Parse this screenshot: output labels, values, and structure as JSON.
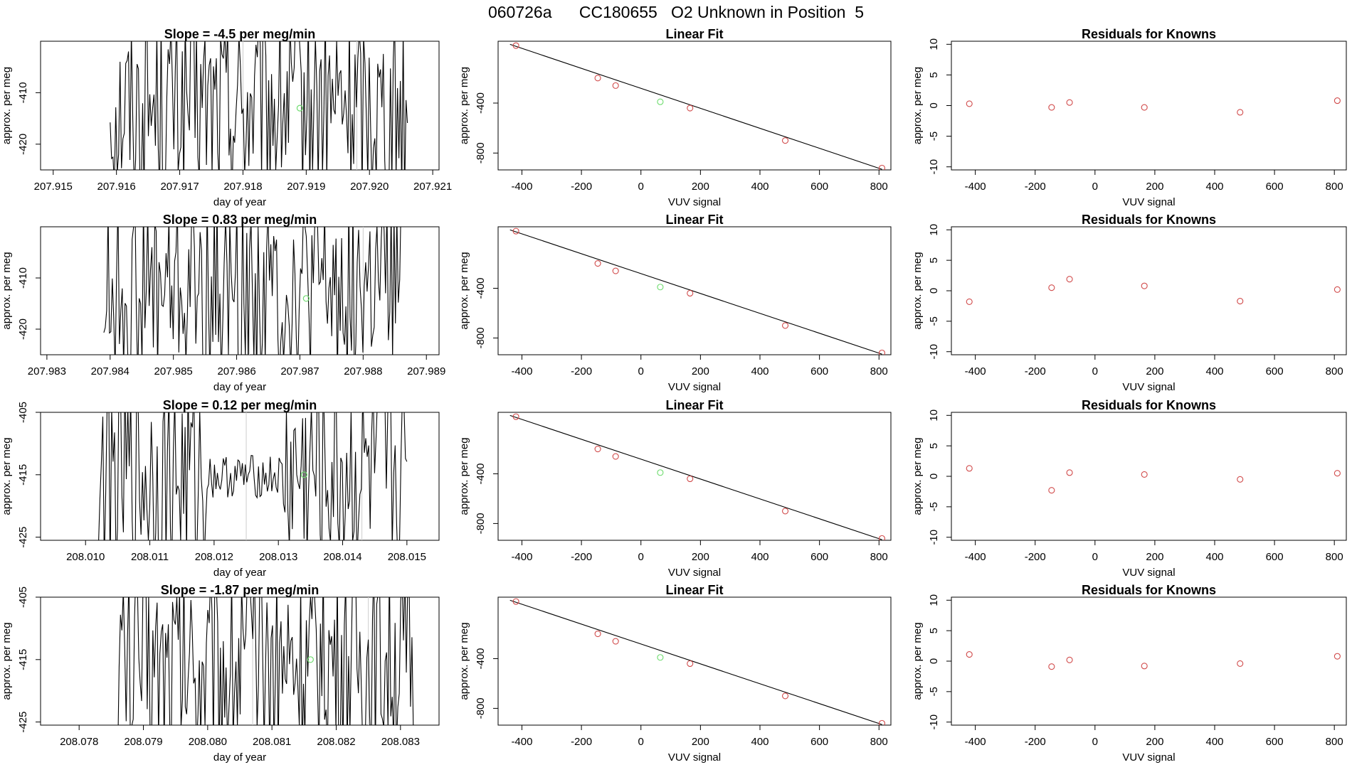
{
  "page": {
    "title": "060726a      CC180655   O2 Unknown in Position  5"
  },
  "colors": {
    "line": "#000000",
    "green": "#6fdc6f",
    "red": "#d14b4b",
    "refline": "#cccccc"
  },
  "chart_data": [
    {
      "type": "line",
      "title": "Slope =  -4.5  per meg/min",
      "xlabel": "day of year",
      "ylabel": "approx. per meg",
      "xlim": [
        207.9148,
        207.9211
      ],
      "ylim": [
        -425,
        -400
      ],
      "xticks": [
        "207.915",
        "207.916",
        "207.917",
        "207.918",
        "207.919",
        "207.920",
        "207.921"
      ],
      "yticks": [
        "-410",
        "-420"
      ],
      "highlight_point": {
        "x": 207.9189,
        "y": -413
      },
      "ref_lines_x": [
        207.918,
        207.9198
      ],
      "trace_span": [
        207.9159,
        207.9206
      ]
    },
    {
      "type": "line",
      "title": "Slope =  0.83  per meg/min",
      "xlabel": "day of year",
      "ylabel": "approx. per meg",
      "xlim": [
        207.9829,
        207.9892
      ],
      "ylim": [
        -425,
        -400
      ],
      "xticks": [
        "207.983",
        "207.984",
        "207.985",
        "207.986",
        "207.987",
        "207.988",
        "207.989"
      ],
      "yticks": [
        "-410",
        "-420"
      ],
      "highlight_point": {
        "x": 207.9871,
        "y": -414
      },
      "ref_lines_x": [
        207.9862,
        207.988
      ],
      "trace_span": [
        207.9839,
        207.9886
      ]
    },
    {
      "type": "line",
      "title": "Slope =  0.12  per meg/min",
      "xlabel": "day of year",
      "ylabel": "approx. per meg",
      "xlim": [
        208.0093,
        208.0155
      ],
      "ylim": [
        -425.5,
        -405
      ],
      "xticks": [
        "208.010",
        "208.011",
        "208.012",
        "208.013",
        "208.014",
        "208.015"
      ],
      "yticks": [
        "-405",
        "-415",
        "-425"
      ],
      "highlight_point": {
        "x": 208.0134,
        "y": -415
      },
      "ref_lines_x": [
        208.0125,
        208.0143
      ],
      "trace_span": [
        208.0102,
        208.015
      ]
    },
    {
      "type": "line",
      "title": "Slope =  -1.87  per meg/min",
      "xlabel": "day of year",
      "ylabel": "approx. per meg",
      "xlim": [
        208.0774,
        208.0836
      ],
      "ylim": [
        -425.5,
        -405
      ],
      "xticks": [
        "208.078",
        "208.079",
        "208.080",
        "208.081",
        "208.082",
        "208.083"
      ],
      "yticks": [
        "-405",
        "-415",
        "-425"
      ],
      "highlight_point": {
        "x": 208.0816,
        "y": -415
      },
      "ref_lines_x": [
        208.0807,
        208.0825
      ],
      "trace_span": [
        208.0786,
        208.0832
      ]
    },
    {
      "type": "scatter",
      "title": "Linear Fit",
      "xlabel": "VUV signal",
      "ylabel": "approx. per meg",
      "xlim": [
        -480,
        840
      ],
      "ylim": [
        -935,
        95
      ],
      "xticks": [
        "-400",
        "-200",
        "0",
        "200",
        "400",
        "600",
        "800"
      ],
      "yticks": [
        "-400",
        "-800"
      ],
      "fit_line": {
        "x": [
          -440,
          810
        ],
        "y": [
          70,
          -930
        ]
      },
      "knowns": [
        {
          "x": -420,
          "y": 60
        },
        {
          "x": -145,
          "y": -200
        },
        {
          "x": -85,
          "y": -260
        },
        {
          "x": 165,
          "y": -440
        },
        {
          "x": 485,
          "y": -700
        },
        {
          "x": 810,
          "y": -920
        }
      ],
      "unknown": {
        "x": 65,
        "y": -390
      }
    },
    {
      "type": "scatter",
      "title": "Linear Fit",
      "xlabel": "VUV signal",
      "ylabel": "approx. per meg",
      "xlim": [
        -480,
        840
      ],
      "ylim": [
        -935,
        95
      ],
      "xticks": [
        "-400",
        "-200",
        "0",
        "200",
        "400",
        "600",
        "800"
      ],
      "yticks": [
        "-400",
        "-800"
      ],
      "fit_line": {
        "x": [
          -440,
          810
        ],
        "y": [
          70,
          -930
        ]
      },
      "knowns": [
        {
          "x": -420,
          "y": 60
        },
        {
          "x": -145,
          "y": -200
        },
        {
          "x": -85,
          "y": -260
        },
        {
          "x": 165,
          "y": -440
        },
        {
          "x": 485,
          "y": -700
        },
        {
          "x": 810,
          "y": -920
        }
      ],
      "unknown": {
        "x": 65,
        "y": -390
      }
    },
    {
      "type": "scatter",
      "title": "Linear Fit",
      "xlabel": "VUV signal",
      "ylabel": "approx. per meg",
      "xlim": [
        -480,
        840
      ],
      "ylim": [
        -935,
        95
      ],
      "xticks": [
        "-400",
        "-200",
        "0",
        "200",
        "400",
        "600",
        "800"
      ],
      "yticks": [
        "-400",
        "-800"
      ],
      "fit_line": {
        "x": [
          -440,
          810
        ],
        "y": [
          70,
          -930
        ]
      },
      "knowns": [
        {
          "x": -420,
          "y": 60
        },
        {
          "x": -145,
          "y": -200
        },
        {
          "x": -85,
          "y": -260
        },
        {
          "x": 165,
          "y": -440
        },
        {
          "x": 485,
          "y": -700
        },
        {
          "x": 810,
          "y": -920
        }
      ],
      "unknown": {
        "x": 65,
        "y": -390
      }
    },
    {
      "type": "scatter",
      "title": "Linear Fit",
      "xlabel": "VUV signal",
      "ylabel": "approx. per meg",
      "xlim": [
        -480,
        840
      ],
      "ylim": [
        -935,
        95
      ],
      "xticks": [
        "-400",
        "-200",
        "0",
        "200",
        "400",
        "600",
        "800"
      ],
      "yticks": [
        "-400",
        "-800"
      ],
      "fit_line": {
        "x": [
          -440,
          810
        ],
        "y": [
          70,
          -930
        ]
      },
      "knowns": [
        {
          "x": -420,
          "y": 60
        },
        {
          "x": -145,
          "y": -200
        },
        {
          "x": -85,
          "y": -260
        },
        {
          "x": 165,
          "y": -440
        },
        {
          "x": 485,
          "y": -700
        },
        {
          "x": 810,
          "y": -920
        }
      ],
      "unknown": {
        "x": 65,
        "y": -390
      }
    },
    {
      "type": "scatter",
      "title": "Residuals for Knowns",
      "xlabel": "VUV signal",
      "ylabel": "approx. per meg",
      "xlim": [
        -480,
        840
      ],
      "ylim": [
        -10.5,
        10.5
      ],
      "xticks": [
        "-400",
        "-200",
        "0",
        "200",
        "400",
        "600",
        "800"
      ],
      "yticks": [
        "10",
        "5",
        "0",
        "-5",
        "-10"
      ],
      "points": [
        {
          "x": -420,
          "y": 0.3
        },
        {
          "x": -145,
          "y": -0.3
        },
        {
          "x": -85,
          "y": 0.5
        },
        {
          "x": 165,
          "y": -0.3
        },
        {
          "x": 485,
          "y": -1.1
        },
        {
          "x": 810,
          "y": 0.8
        }
      ]
    },
    {
      "type": "scatter",
      "title": "Residuals for Knowns",
      "xlabel": "VUV signal",
      "ylabel": "approx. per meg",
      "xlim": [
        -480,
        840
      ],
      "ylim": [
        -10.5,
        10.5
      ],
      "xticks": [
        "-400",
        "-200",
        "0",
        "200",
        "400",
        "600",
        "800"
      ],
      "yticks": [
        "10",
        "5",
        "0",
        "-5",
        "-10"
      ],
      "points": [
        {
          "x": -420,
          "y": -1.8
        },
        {
          "x": -145,
          "y": 0.5
        },
        {
          "x": -85,
          "y": 1.9
        },
        {
          "x": 165,
          "y": 0.8
        },
        {
          "x": 485,
          "y": -1.7
        },
        {
          "x": 810,
          "y": 0.2
        }
      ]
    },
    {
      "type": "scatter",
      "title": "Residuals for Knowns",
      "xlabel": "VUV signal",
      "ylabel": "approx. per meg",
      "xlim": [
        -480,
        840
      ],
      "ylim": [
        -10.5,
        10.5
      ],
      "xticks": [
        "-400",
        "-200",
        "0",
        "200",
        "400",
        "600",
        "800"
      ],
      "yticks": [
        "10",
        "5",
        "0",
        "-5",
        "-10"
      ],
      "points": [
        {
          "x": -420,
          "y": 1.3
        },
        {
          "x": -145,
          "y": -2.3
        },
        {
          "x": -85,
          "y": 0.6
        },
        {
          "x": 165,
          "y": 0.3
        },
        {
          "x": 485,
          "y": -0.5
        },
        {
          "x": 810,
          "y": 0.5
        }
      ]
    },
    {
      "type": "scatter",
      "title": "Residuals for Knowns",
      "xlabel": "VUV signal",
      "ylabel": "approx. per meg",
      "xlim": [
        -480,
        840
      ],
      "ylim": [
        -10.5,
        10.5
      ],
      "xticks": [
        "-400",
        "-200",
        "0",
        "200",
        "400",
        "600",
        "800"
      ],
      "yticks": [
        "10",
        "5",
        "0",
        "-5",
        "-10"
      ],
      "points": [
        {
          "x": -420,
          "y": 1.1
        },
        {
          "x": -145,
          "y": -0.9
        },
        {
          "x": -85,
          "y": 0.2
        },
        {
          "x": 165,
          "y": -0.8
        },
        {
          "x": 485,
          "y": -0.4
        },
        {
          "x": 810,
          "y": 0.8
        }
      ]
    }
  ]
}
